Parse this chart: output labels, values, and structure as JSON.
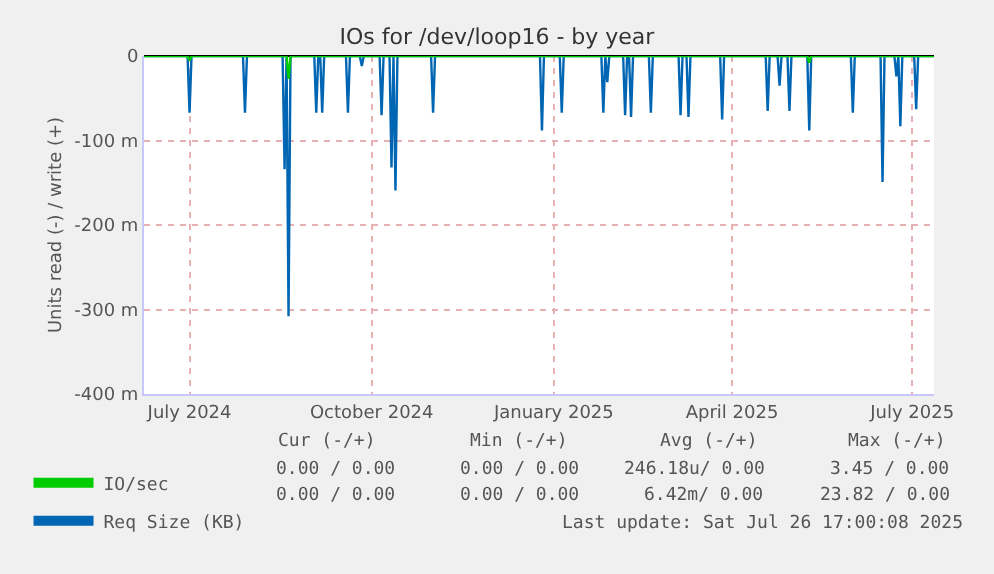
{
  "chart_data": {
    "type": "line",
    "title": "IOs for /dev/loop16 - by year",
    "ylabel": "Units read (-) / write (+)",
    "xlim": [
      "2024-06-22",
      "2025-07-26"
    ],
    "xticks": [
      {
        "value": "2024-07-15",
        "label": "July 2024"
      },
      {
        "value": "2024-10-15",
        "label": "October 2024"
      },
      {
        "value": "2025-01-15",
        "label": "January 2025"
      },
      {
        "value": "2025-04-15",
        "label": "April 2025"
      },
      {
        "value": "2025-07-15",
        "label": "July 2025"
      }
    ],
    "ylim": [
      -400,
      0
    ],
    "yticks": [
      {
        "value": 0,
        "label": "0"
      },
      {
        "value": -100,
        "label": "-100 m"
      },
      {
        "value": -200,
        "label": "-200 m"
      },
      {
        "value": -300,
        "label": "-300 m"
      },
      {
        "value": -400,
        "label": "-400 m"
      }
    ],
    "grid": true,
    "legend": "bottom",
    "marker": "none",
    "line_style": "solid",
    "series": [
      {
        "name": "Req Size (KB)",
        "color": "#0066b3",
        "x": [
          "2024-06-22",
          "2024-07-14",
          "2024-07-15",
          "2024-07-16",
          "2024-08-11",
          "2024-08-12",
          "2024-08-13",
          "2024-08-31",
          "2024-09-01",
          "2024-09-02",
          "2024-09-03",
          "2024-09-04",
          "2024-09-16",
          "2024-09-17",
          "2024-09-18",
          "2024-09-19",
          "2024-09-20",
          "2024-09-21",
          "2024-10-02",
          "2024-10-03",
          "2024-10-04",
          "2024-10-09",
          "2024-10-10",
          "2024-10-11",
          "2024-10-19",
          "2024-10-20",
          "2024-10-21",
          "2024-10-24",
          "2024-10-25",
          "2024-10-26",
          "2024-10-27",
          "2024-10-28",
          "2024-11-14",
          "2024-11-15",
          "2024-11-16",
          "2025-01-08",
          "2025-01-09",
          "2025-01-10",
          "2025-01-18",
          "2025-01-19",
          "2025-01-20",
          "2025-02-08",
          "2025-02-09",
          "2025-02-10",
          "2025-02-11",
          "2025-02-12",
          "2025-02-19",
          "2025-02-20",
          "2025-02-21",
          "2025-02-22",
          "2025-02-23",
          "2025-02-24",
          "2025-03-04",
          "2025-03-05",
          "2025-03-06",
          "2025-03-19",
          "2025-03-20",
          "2025-03-21",
          "2025-03-23",
          "2025-03-24",
          "2025-03-25",
          "2025-04-09",
          "2025-04-10",
          "2025-04-11",
          "2025-05-02",
          "2025-05-03",
          "2025-05-04",
          "2025-05-08",
          "2025-05-09",
          "2025-05-10",
          "2025-05-13",
          "2025-05-14",
          "2025-05-15",
          "2025-05-23",
          "2025-05-24",
          "2025-05-25",
          "2025-06-14",
          "2025-06-15",
          "2025-06-16",
          "2025-06-29",
          "2025-06-30",
          "2025-07-01",
          "2025-07-06",
          "2025-07-07",
          "2025-07-08",
          "2025-07-09",
          "2025-07-10",
          "2025-07-16",
          "2025-07-17",
          "2025-07-18",
          "2025-07-26"
        ],
        "values": [
          0,
          0,
          -67,
          0,
          0,
          -67,
          0,
          0,
          -134,
          0,
          -308,
          0,
          0,
          -67,
          0,
          0,
          -67,
          0,
          0,
          -67,
          0,
          0,
          -12,
          0,
          0,
          -70,
          0,
          0,
          -132,
          0,
          -159,
          0,
          0,
          -67,
          0,
          0,
          -88,
          0,
          0,
          -67,
          0,
          0,
          -67,
          0,
          -31,
          0,
          0,
          -70,
          0,
          0,
          -72,
          0,
          0,
          -67,
          0,
          0,
          -70,
          0,
          0,
          -72,
          0,
          0,
          -75,
          0,
          0,
          -65,
          0,
          0,
          -35,
          0,
          0,
          -65,
          0,
          0,
          -88,
          0,
          0,
          -67,
          0,
          0,
          -149,
          0,
          0,
          -24,
          0,
          -83,
          0,
          0,
          -63,
          0,
          0
        ]
      },
      {
        "name": "IO/sec",
        "color": "#00cc00",
        "x": [
          "2024-06-22",
          "2024-07-14",
          "2024-07-15",
          "2024-07-16",
          "2024-09-02",
          "2024-09-03",
          "2024-09-04",
          "2025-05-23",
          "2025-05-24",
          "2025-05-25",
          "2025-07-26"
        ],
        "values": [
          0,
          0,
          -5,
          0,
          0,
          -27,
          0,
          0,
          -8,
          0,
          0
        ]
      }
    ],
    "annotations": [
      "Cur (-/+)",
      "Min (-/+)",
      "Avg (-/+)",
      "Max (-/+)",
      "0.00 / 0.00",
      "0.00 / 0.00",
      "246.18u/ 0.00",
      "3.45 / 0.00",
      "0.00 / 0.00",
      "0.00 / 0.00",
      "6.42m/ 0.00",
      "23.82 / 0.00",
      "Last update: Sat Jul 26 17:00:08 2025"
    ]
  }
}
